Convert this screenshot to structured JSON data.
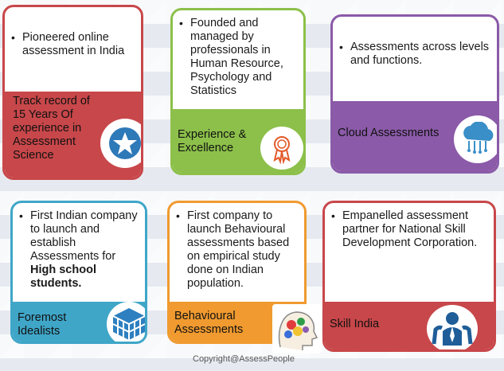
{
  "cards": [
    {
      "bullet": "Pioneered online assessment in India",
      "title": "Track record of 15 Years Of experience in Assessment Science",
      "color": "#c8474a",
      "border": "#c8474a",
      "icon": "star-icon"
    },
    {
      "bullet": "Founded and managed by professionals  in Human Resource, Psychology and Statistics",
      "title": "Experience & Excellence",
      "color": "#8cc04a",
      "border": "#8cc04a",
      "icon": "award-ribbon-icon"
    },
    {
      "bullet": "Assessments across levels and functions.",
      "title": "Cloud Assessments",
      "color": "#8b5aa8",
      "border": "#8b5aa8",
      "icon": "cloud-icon"
    },
    {
      "bullet_prefix": "First Indian company to launch and establish Assessments for ",
      "bullet_bold": "High school students.",
      "title": "Foremost Idealists",
      "color": "#3fa6c8",
      "border": "#3fa6c8",
      "icon": "cube-icon"
    },
    {
      "bullet": "First company to launch Behavioural assessments based on empirical study done on Indian population.",
      "title": "Behavioural Assessments",
      "color": "#f09a2f",
      "border": "#f09a2f",
      "icon": "head-gears-icon"
    },
    {
      "bullet": "Empanelled assessment partner for National Skill Development Corporation.",
      "title": "Skill India",
      "color": "#c8474a",
      "border": "#c8474a",
      "icon": "people-icon"
    }
  ],
  "footer": {
    "copyright": "Copyright@AssessPeople"
  }
}
